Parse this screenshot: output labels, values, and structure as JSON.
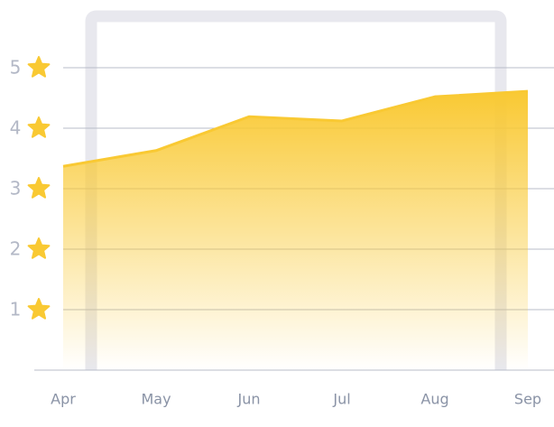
{
  "chart_data": {
    "type": "area",
    "categories": [
      "Apr",
      "May",
      "Jun",
      "Jul",
      "Aug",
      "Sep"
    ],
    "values": [
      3.37,
      3.63,
      4.19,
      4.12,
      4.52,
      4.61
    ],
    "color": "#f9c933",
    "ylim": [
      0,
      5
    ],
    "yticks": [
      1,
      2,
      3,
      4,
      5
    ],
    "grid": true
  }
}
